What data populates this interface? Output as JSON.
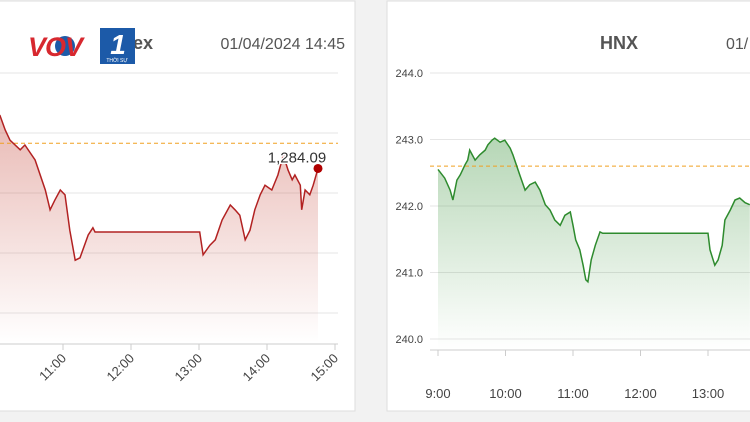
{
  "logo": {
    "brand": "VOV",
    "channel": "1",
    "tagline": "THỜI SỰ"
  },
  "chart_data": [
    {
      "type": "line",
      "title": "VN-Index",
      "subtitle": "01/04/2024 14:45",
      "color": "#b22222",
      "grid": true,
      "show_ytick_labels": false,
      "xtick_rotation": -45,
      "xlim": [
        9.25,
        15.05
      ],
      "ylim": [
        1255,
        1300
      ],
      "xticks": [
        {
          "value": 11,
          "label": "11:00"
        },
        {
          "value": 12,
          "label": "12:00"
        },
        {
          "value": 13,
          "label": "13:00"
        },
        {
          "value": 14,
          "label": "14:00"
        },
        {
          "value": 15,
          "label": "15:00"
        }
      ],
      "yticks": [
        1260,
        1270,
        1280,
        1290,
        1300
      ],
      "reference": 1288.3,
      "reference_color": "#f0a020",
      "x": [
        10.07,
        10.15,
        10.22,
        10.37,
        10.44,
        10.59,
        10.74,
        10.81,
        10.88,
        10.96,
        11.03,
        11.1,
        11.18,
        11.25,
        11.37,
        11.44,
        11.47,
        13.01,
        13.06,
        13.16,
        13.24,
        13.34,
        13.46,
        13.53,
        13.6,
        13.68,
        13.75,
        13.82,
        13.9,
        13.97,
        14.07,
        14.16,
        14.24,
        14.31,
        14.37,
        14.41,
        14.49,
        14.51,
        14.56,
        14.63,
        14.68,
        14.75
      ],
      "values": [
        1293.0,
        1290.5,
        1288.8,
        1287.2,
        1288.0,
        1285.5,
        1280.5,
        1277.2,
        1278.8,
        1280.5,
        1279.7,
        1273.8,
        1268.8,
        1269.2,
        1273.0,
        1274.2,
        1273.5,
        1273.5,
        1269.7,
        1271.3,
        1272.2,
        1275.5,
        1278.0,
        1277.2,
        1276.3,
        1272.2,
        1273.8,
        1277.2,
        1279.7,
        1281.3,
        1280.5,
        1283.0,
        1286.3,
        1283.8,
        1282.2,
        1283.0,
        1281.3,
        1277.2,
        1280.5,
        1279.7,
        1281.3,
        1284.09
      ],
      "annotation": {
        "value": 1284.09,
        "label": "1,284.09"
      }
    },
    {
      "type": "line",
      "title": "HNX",
      "subtitle": "01/",
      "color": "#2e8b2e",
      "grid": true,
      "show_ytick_labels": true,
      "xtick_rotation": 0,
      "xlim": [
        8.9,
        15.1
      ],
      "ylim": [
        239.85,
        244
      ],
      "xticks": [
        {
          "value": 9,
          "label": "9:00"
        },
        {
          "value": 10,
          "label": "10:00"
        },
        {
          "value": 11,
          "label": "11:00"
        },
        {
          "value": 12,
          "label": "12:00"
        },
        {
          "value": 13,
          "label": "13:00"
        }
      ],
      "yticks": [
        {
          "value": 240,
          "label": "240.0"
        },
        {
          "value": 241,
          "label": "241.0"
        },
        {
          "value": 242,
          "label": "242.0"
        },
        {
          "value": 243,
          "label": "243.0"
        },
        {
          "value": 244,
          "label": "244.0"
        }
      ],
      "reference": 242.6,
      "reference_color": "#f0a020",
      "x": [
        9.0,
        9.1,
        9.18,
        9.22,
        9.28,
        9.33,
        9.4,
        9.44,
        9.47,
        9.55,
        9.62,
        9.7,
        9.74,
        9.8,
        9.84,
        9.92,
        9.99,
        10.07,
        10.11,
        10.16,
        10.21,
        10.29,
        10.36,
        10.44,
        10.51,
        10.59,
        10.66,
        10.73,
        10.81,
        10.88,
        10.96,
        11.0,
        11.04,
        11.1,
        11.15,
        11.19,
        11.22,
        11.27,
        11.33,
        11.4,
        11.44,
        13.0,
        13.03,
        13.1,
        13.15,
        13.21,
        13.25,
        13.33,
        13.4,
        13.47,
        13.55,
        13.62
      ],
      "values": [
        242.55,
        242.42,
        242.24,
        242.09,
        242.39,
        242.47,
        242.62,
        242.69,
        242.84,
        242.69,
        242.77,
        242.84,
        242.92,
        242.99,
        243.02,
        242.96,
        242.99,
        242.87,
        242.77,
        242.62,
        242.47,
        242.24,
        242.32,
        242.36,
        242.24,
        242.02,
        241.94,
        241.79,
        241.71,
        241.86,
        241.91,
        241.71,
        241.49,
        241.34,
        241.11,
        240.89,
        240.86,
        241.19,
        241.41,
        241.61,
        241.59,
        241.59,
        241.34,
        241.11,
        241.19,
        241.41,
        241.79,
        241.94,
        242.09,
        242.12,
        242.05,
        242.02
      ]
    }
  ]
}
